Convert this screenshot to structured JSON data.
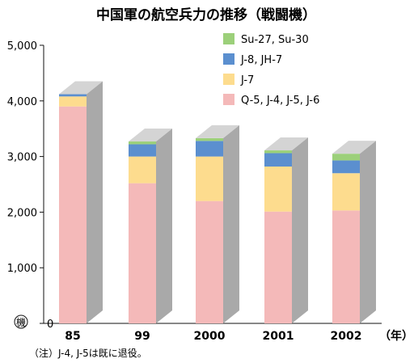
{
  "chart_data": {
    "type": "bar",
    "stacked": true,
    "title": "中国軍の航空兵力の推移（戦闘機）",
    "y_unit_label": "機",
    "x_unit_label": "（年）",
    "note": "（注）J-4, J-5は既に退役。",
    "categories": [
      "85",
      "99",
      "2000",
      "2001",
      "2002"
    ],
    "ylim": [
      0,
      5000
    ],
    "yticks": [
      0,
      1000,
      2000,
      3000,
      4000,
      5000
    ],
    "ytick_labels": [
      "0",
      "1,000",
      "2,000",
      "3,000",
      "4,000",
      "5,000"
    ],
    "legend_position": "top-right",
    "series": [
      {
        "name": "Q-5, J-4, J-5, J-6",
        "color": "#f4b9b9",
        "values": [
          3900,
          2520,
          2200,
          2010,
          2030
        ]
      },
      {
        "name": "J-7",
        "color": "#fddc8e",
        "values": [
          180,
          480,
          800,
          810,
          670
        ]
      },
      {
        "name": "J-8, JH-7",
        "color": "#5b8fcf",
        "values": [
          40,
          220,
          280,
          240,
          230
        ]
      },
      {
        "name": "Su-27, Su-30",
        "color": "#9cd07a",
        "values": [
          0,
          50,
          50,
          50,
          120
        ]
      }
    ]
  }
}
